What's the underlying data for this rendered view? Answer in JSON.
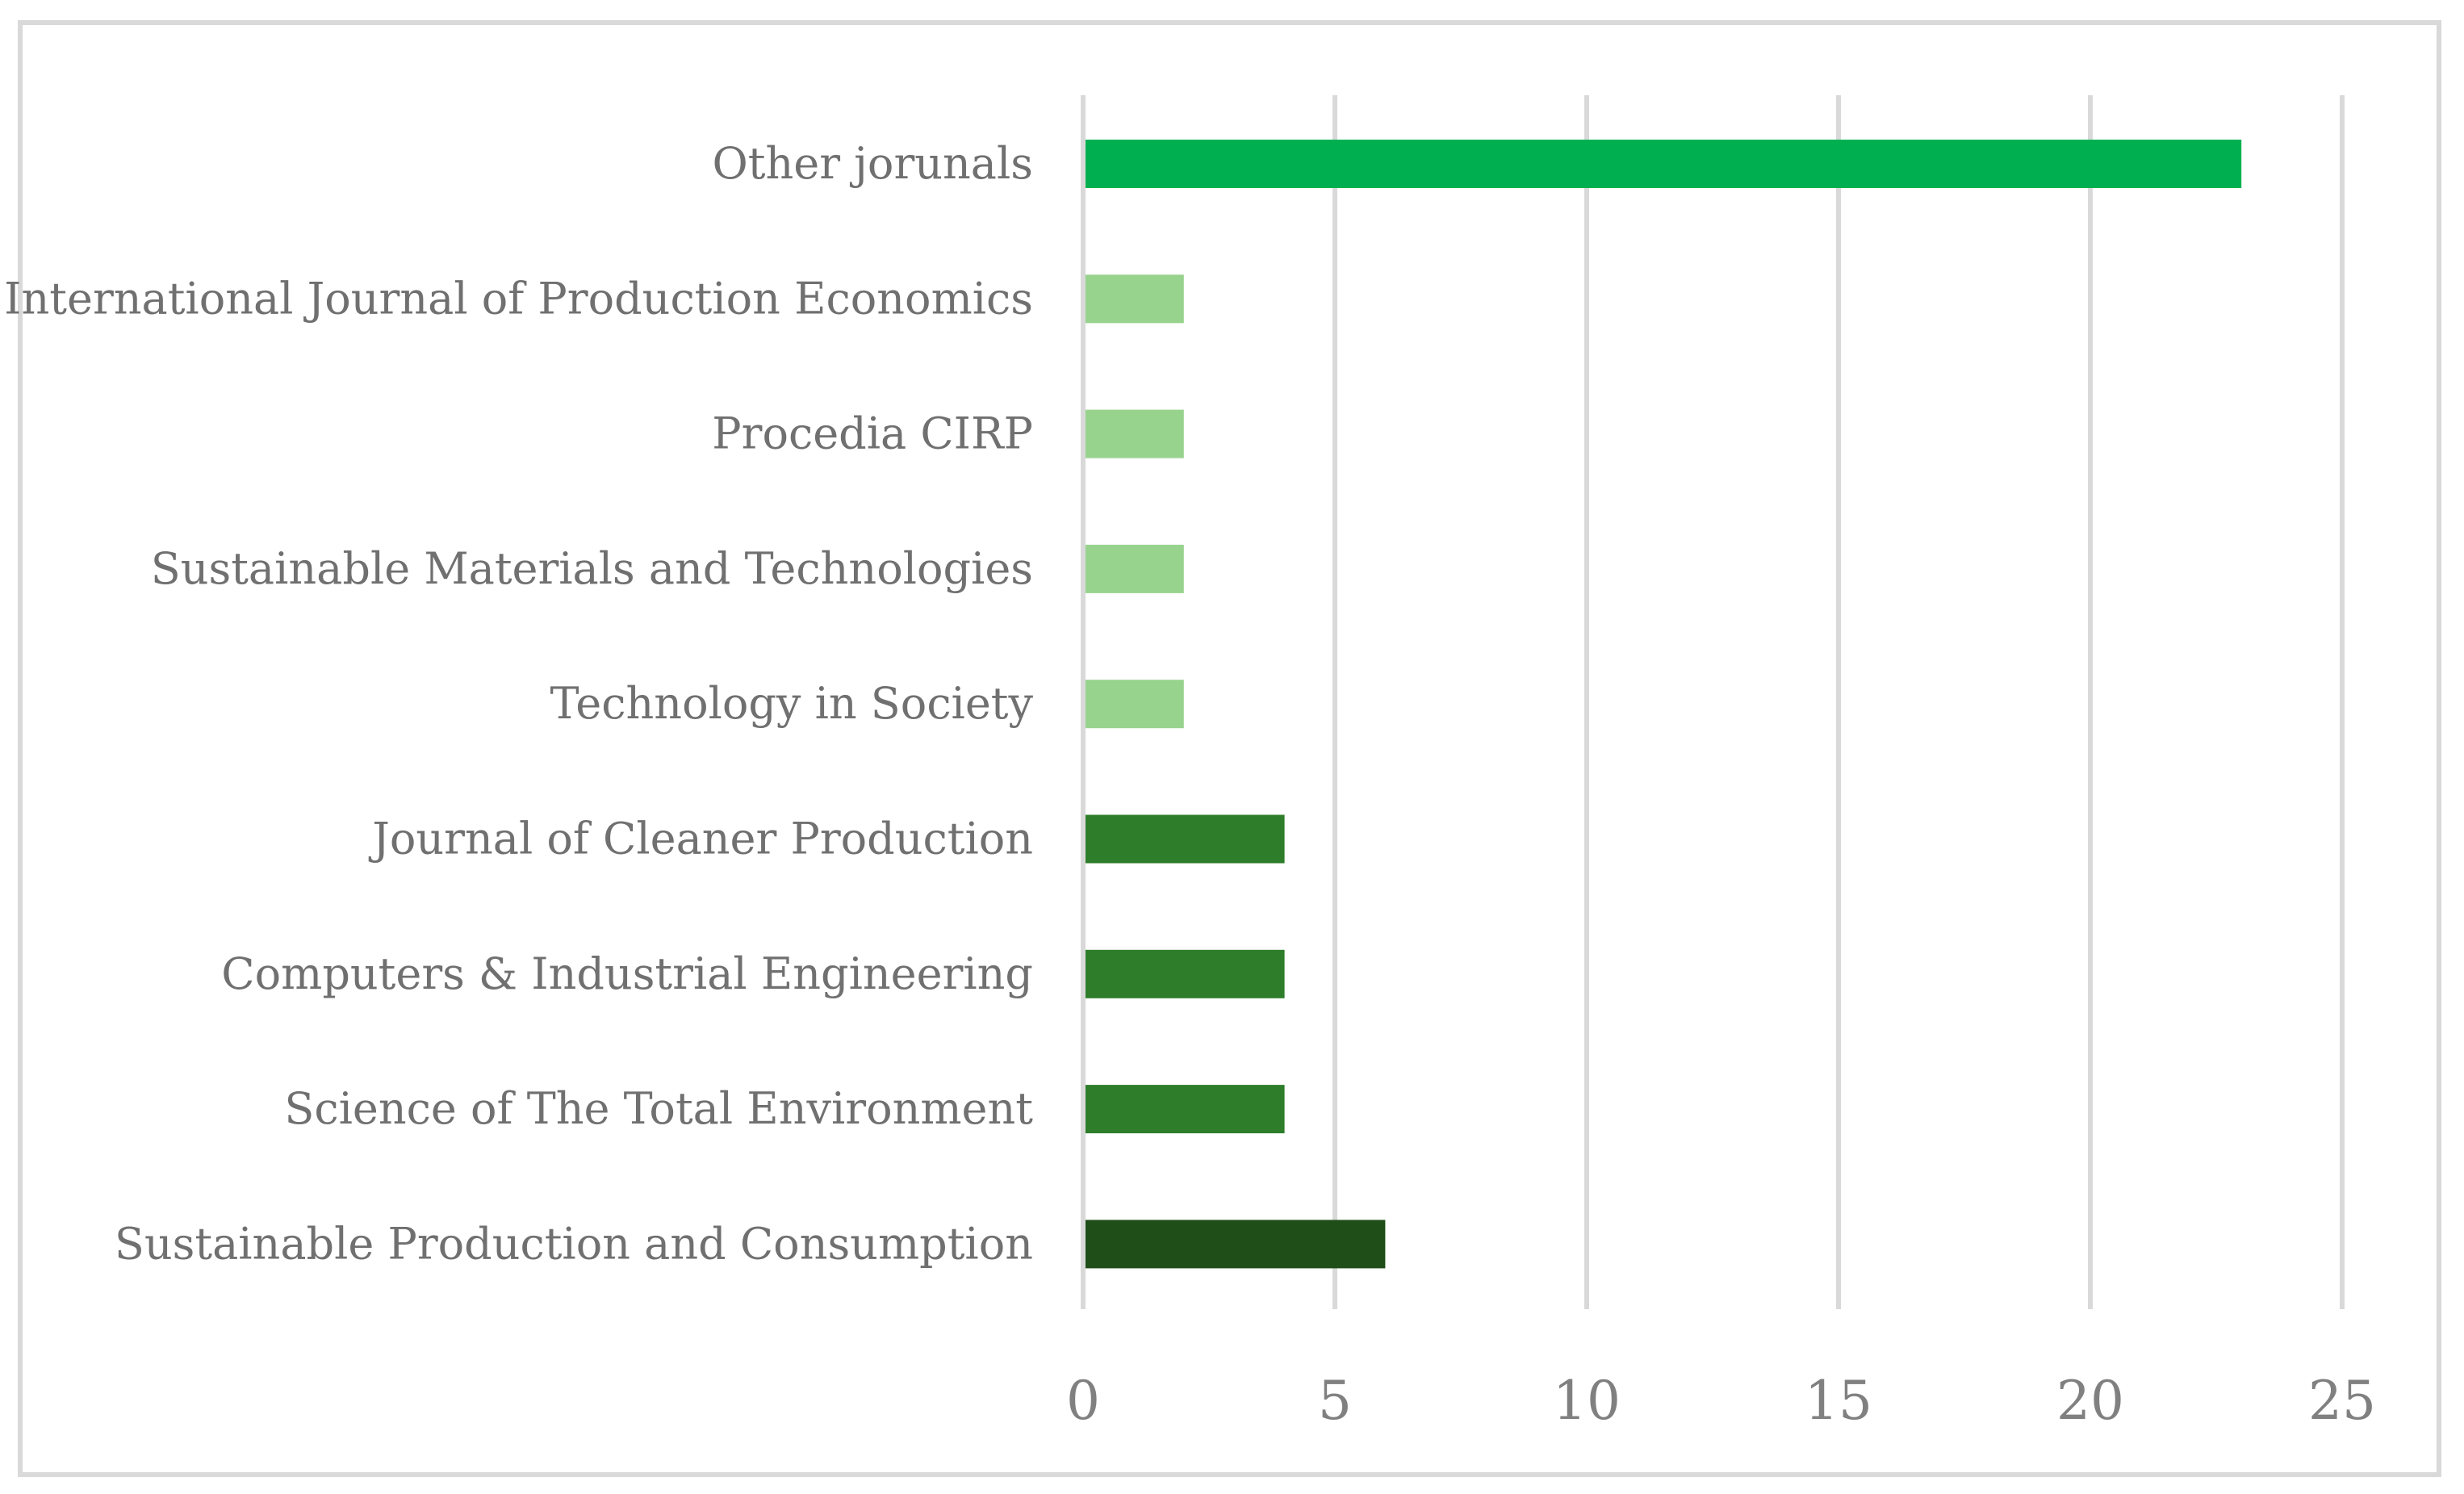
{
  "chart_data": {
    "type": "bar",
    "orientation": "horizontal",
    "title": "",
    "xlabel": "",
    "ylabel": "",
    "categories": [
      "Other jorunals",
      "International Journal of Production Economics",
      "Procedia CIRP",
      "Sustainable Materials and Technologies",
      "Technology in Society",
      "Journal of Cleaner Production",
      "Computers & Industrial Engineering",
      "Science of The Total Environment",
      "Sustainable Production and Consumption"
    ],
    "values": [
      23,
      2,
      2,
      2,
      2,
      4,
      4,
      4,
      6
    ],
    "bar_colors": [
      "#00b050",
      "#98d38e",
      "#98d38e",
      "#98d38e",
      "#98d38e",
      "#2e7d2a",
      "#2e7d2a",
      "#2e7d2a",
      "#1f4e18"
    ],
    "xlim": [
      0,
      25
    ],
    "xticks": [
      0,
      5,
      10,
      15,
      20,
      25
    ],
    "grid": true,
    "legend": "none"
  },
  "colors": {
    "gridline": "#d9d9d9",
    "label_text": "#707070",
    "tick_text": "#808080",
    "frame": "#d9d9d9"
  }
}
